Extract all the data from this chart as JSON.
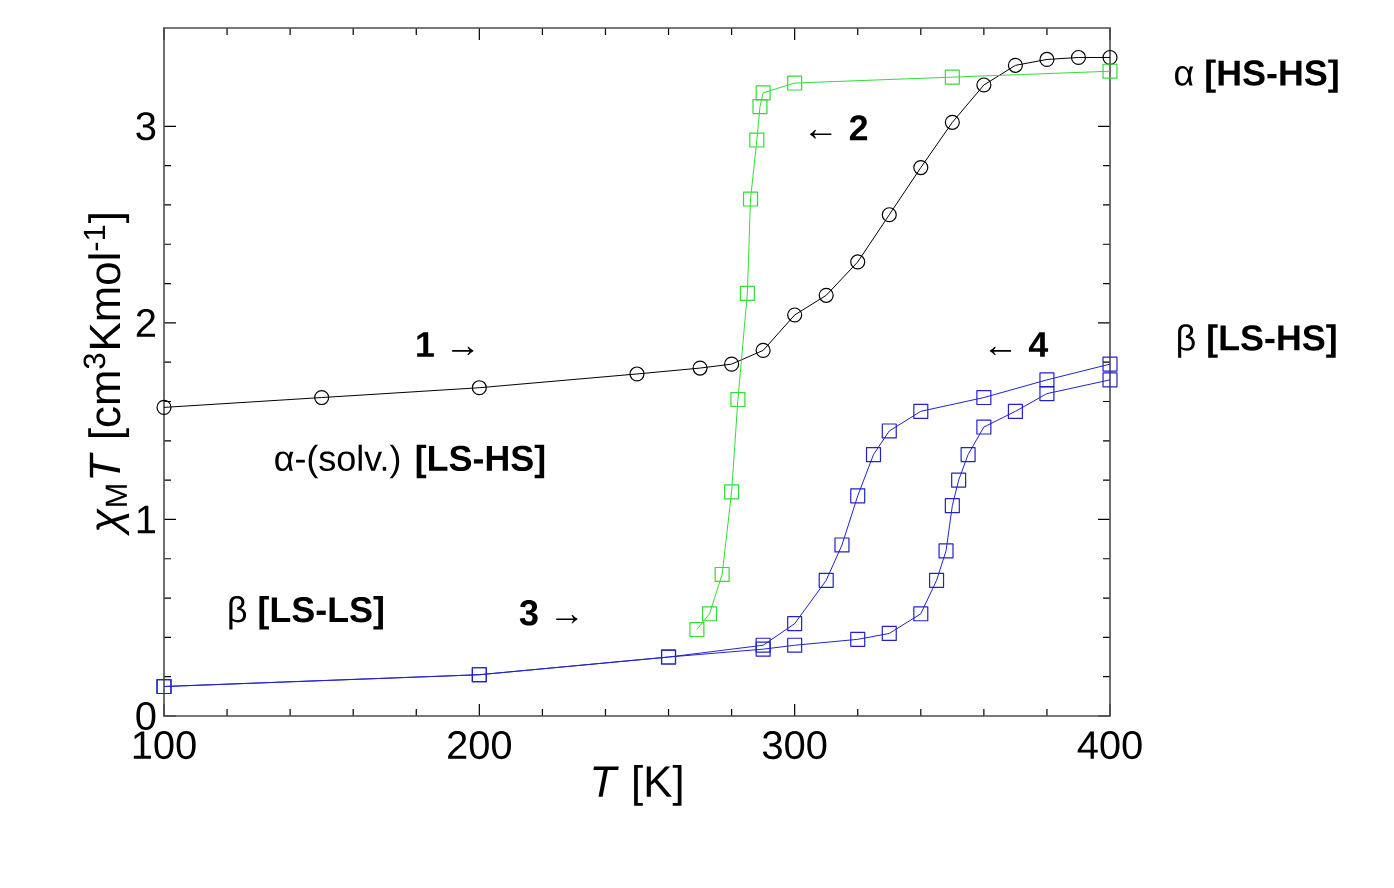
{
  "chart_data": {
    "type": "line",
    "xlabel": "*T* [K]",
    "ylabel": "*χ*$_{M}$*T* [cm$^{3}$Kmol$^{-1}$]",
    "xlim": [
      100,
      400
    ],
    "ylim": [
      0,
      3.5
    ],
    "xticks": [
      100,
      200,
      300,
      400
    ],
    "yticks": [
      0,
      1,
      2,
      3
    ],
    "grid": false,
    "line_style": "solid",
    "series": [
      {
        "color": "#000000",
        "marker": "circle",
        "x": [
          100,
          150,
          200,
          250,
          270,
          280,
          290,
          300,
          310,
          320,
          330,
          340,
          350,
          360,
          370,
          380,
          390,
          400
        ],
        "values": [
          1.57,
          1.62,
          1.67,
          1.74,
          1.77,
          1.79,
          1.86,
          2.04,
          2.14,
          2.31,
          2.55,
          2.79,
          3.02,
          3.21,
          3.31,
          3.34,
          3.35,
          3.35
        ]
      },
      {
        "color": "#33dd33",
        "marker": "square",
        "x": [
          269,
          273,
          277,
          280,
          282,
          285,
          286,
          288,
          289,
          290,
          300,
          350,
          400
        ],
        "values": [
          0.44,
          0.52,
          0.72,
          1.14,
          1.61,
          2.15,
          2.63,
          2.93,
          3.1,
          3.17,
          3.22,
          3.25,
          3.28
        ]
      },
      {
        "color": "#2222cc",
        "marker": "square",
        "x": [
          100,
          200,
          260,
          290,
          300,
          320,
          330,
          340,
          345,
          348,
          350,
          352,
          355,
          360,
          370,
          380,
          400
        ],
        "values": [
          0.15,
          0.21,
          0.3,
          0.34,
          0.36,
          0.39,
          0.42,
          0.52,
          0.69,
          0.84,
          1.07,
          1.2,
          1.33,
          1.47,
          1.55,
          1.64,
          1.71
        ]
      },
      {
        "color": "#2222cc",
        "marker": "square",
        "x": [
          100,
          200,
          260,
          290,
          300,
          310,
          315,
          320,
          325,
          330,
          340,
          360,
          380,
          400
        ],
        "values": [
          0.15,
          0.21,
          0.3,
          0.36,
          0.47,
          0.69,
          0.87,
          1.12,
          1.33,
          1.45,
          1.55,
          1.62,
          1.71,
          1.79
        ]
      }
    ],
    "annotations": [
      "**1** →",
      "← **2**",
      "**3** →",
      "← **4**",
      "α-(solv.) **[LS-HS]**",
      "β **[LS-LS]**",
      "α **[HS-HS]**",
      "β **[LS-HS]**"
    ]
  }
}
